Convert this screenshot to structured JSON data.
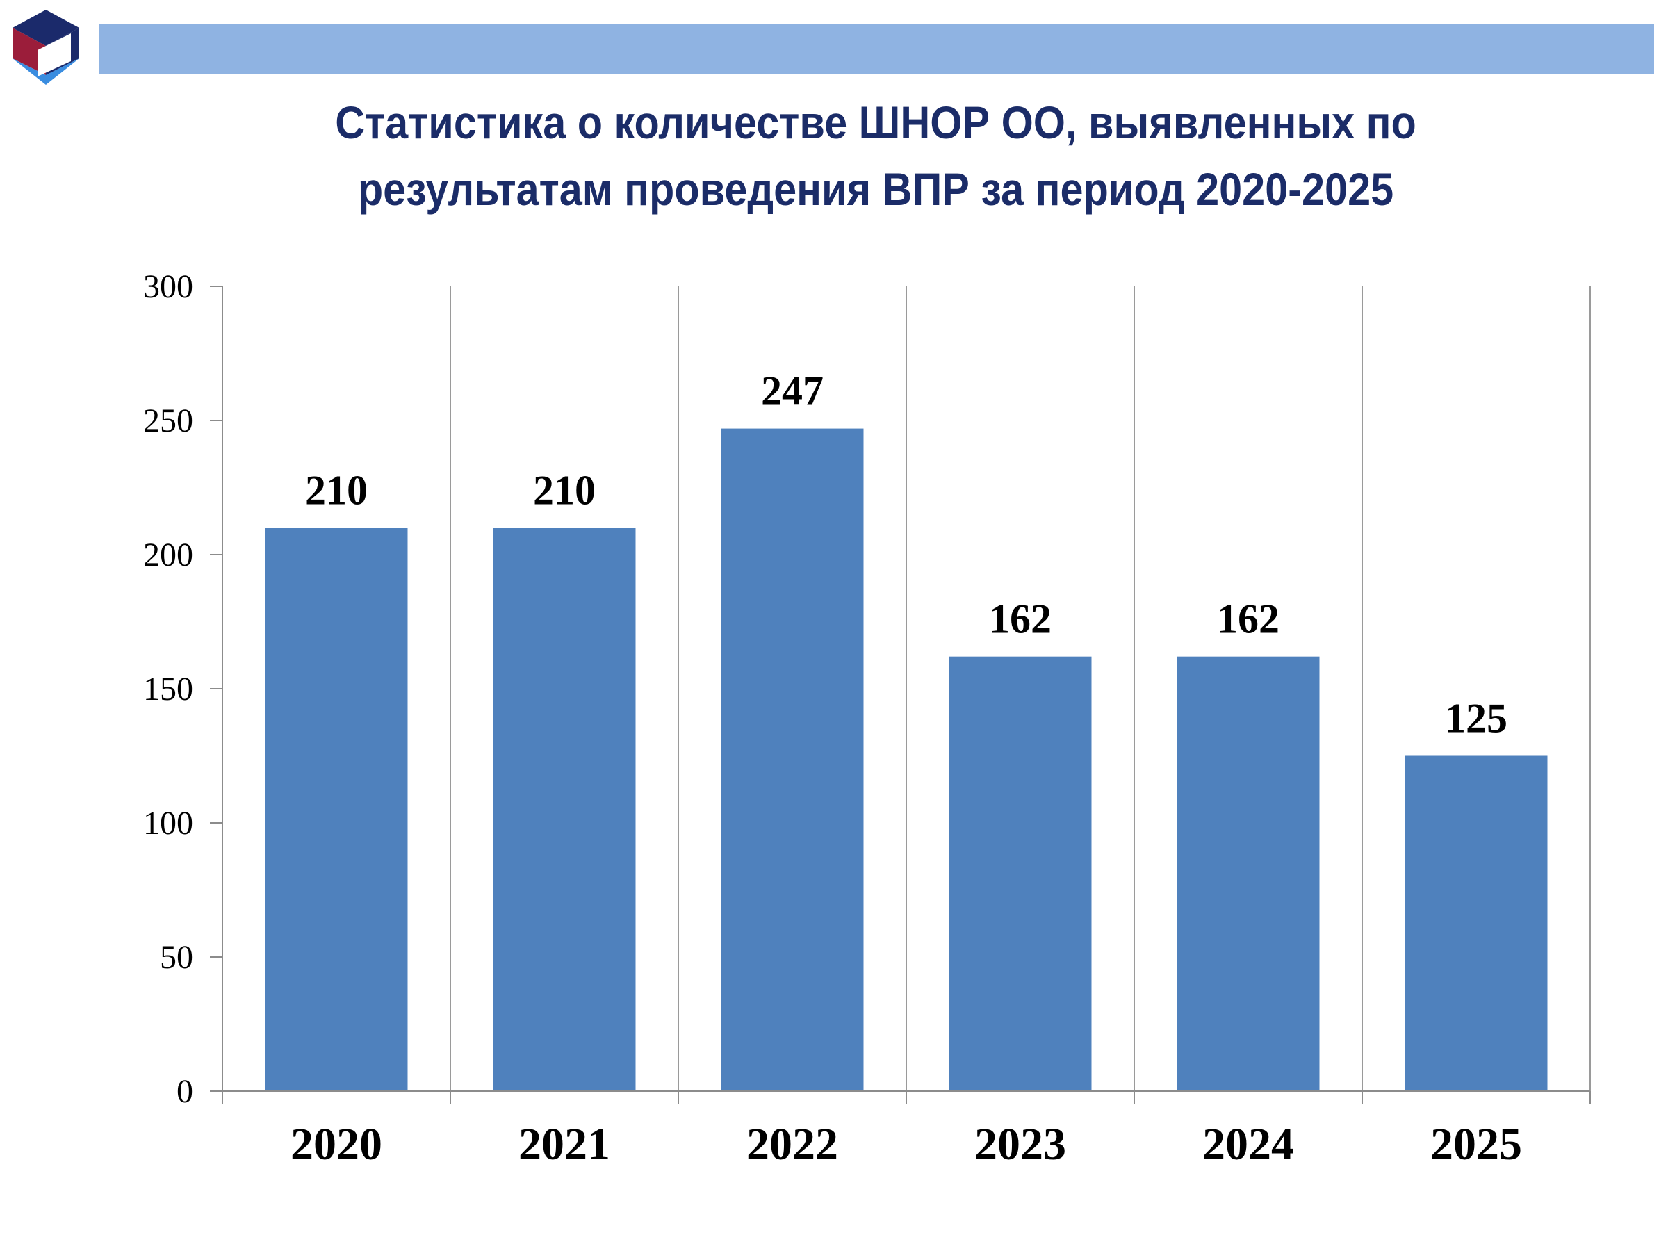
{
  "header": {
    "title": "Статистика о количестве ШНОР ОО, выявленных по\nрезультатам проведения ВПР за период 2020-2025"
  },
  "logo": {
    "icon": "cube-logo-icon",
    "colors": {
      "top": "#1b2a6b",
      "left": "#9b1d3a",
      "right": "#1b2a6b",
      "bottom": "#3a8de0"
    }
  },
  "colors": {
    "header_bar": "#8fb3e2",
    "title": "#1b2c68",
    "bar": "#4f81bd",
    "grid": "#9a9a9a",
    "axis": "#8c8c8c"
  },
  "chart_data": {
    "type": "bar",
    "title": "",
    "xlabel": "",
    "ylabel": "",
    "categories": [
      "2020",
      "2021",
      "2022",
      "2023",
      "2024",
      "2025"
    ],
    "values": [
      210,
      210,
      247,
      162,
      162,
      125
    ],
    "data_labels": [
      "210",
      "210",
      "247",
      "162",
      "162",
      "125"
    ],
    "ylim": [
      0,
      300
    ],
    "yticks": [
      0,
      50,
      100,
      150,
      200,
      250,
      300
    ],
    "grid": "vertical",
    "legend": "none"
  }
}
